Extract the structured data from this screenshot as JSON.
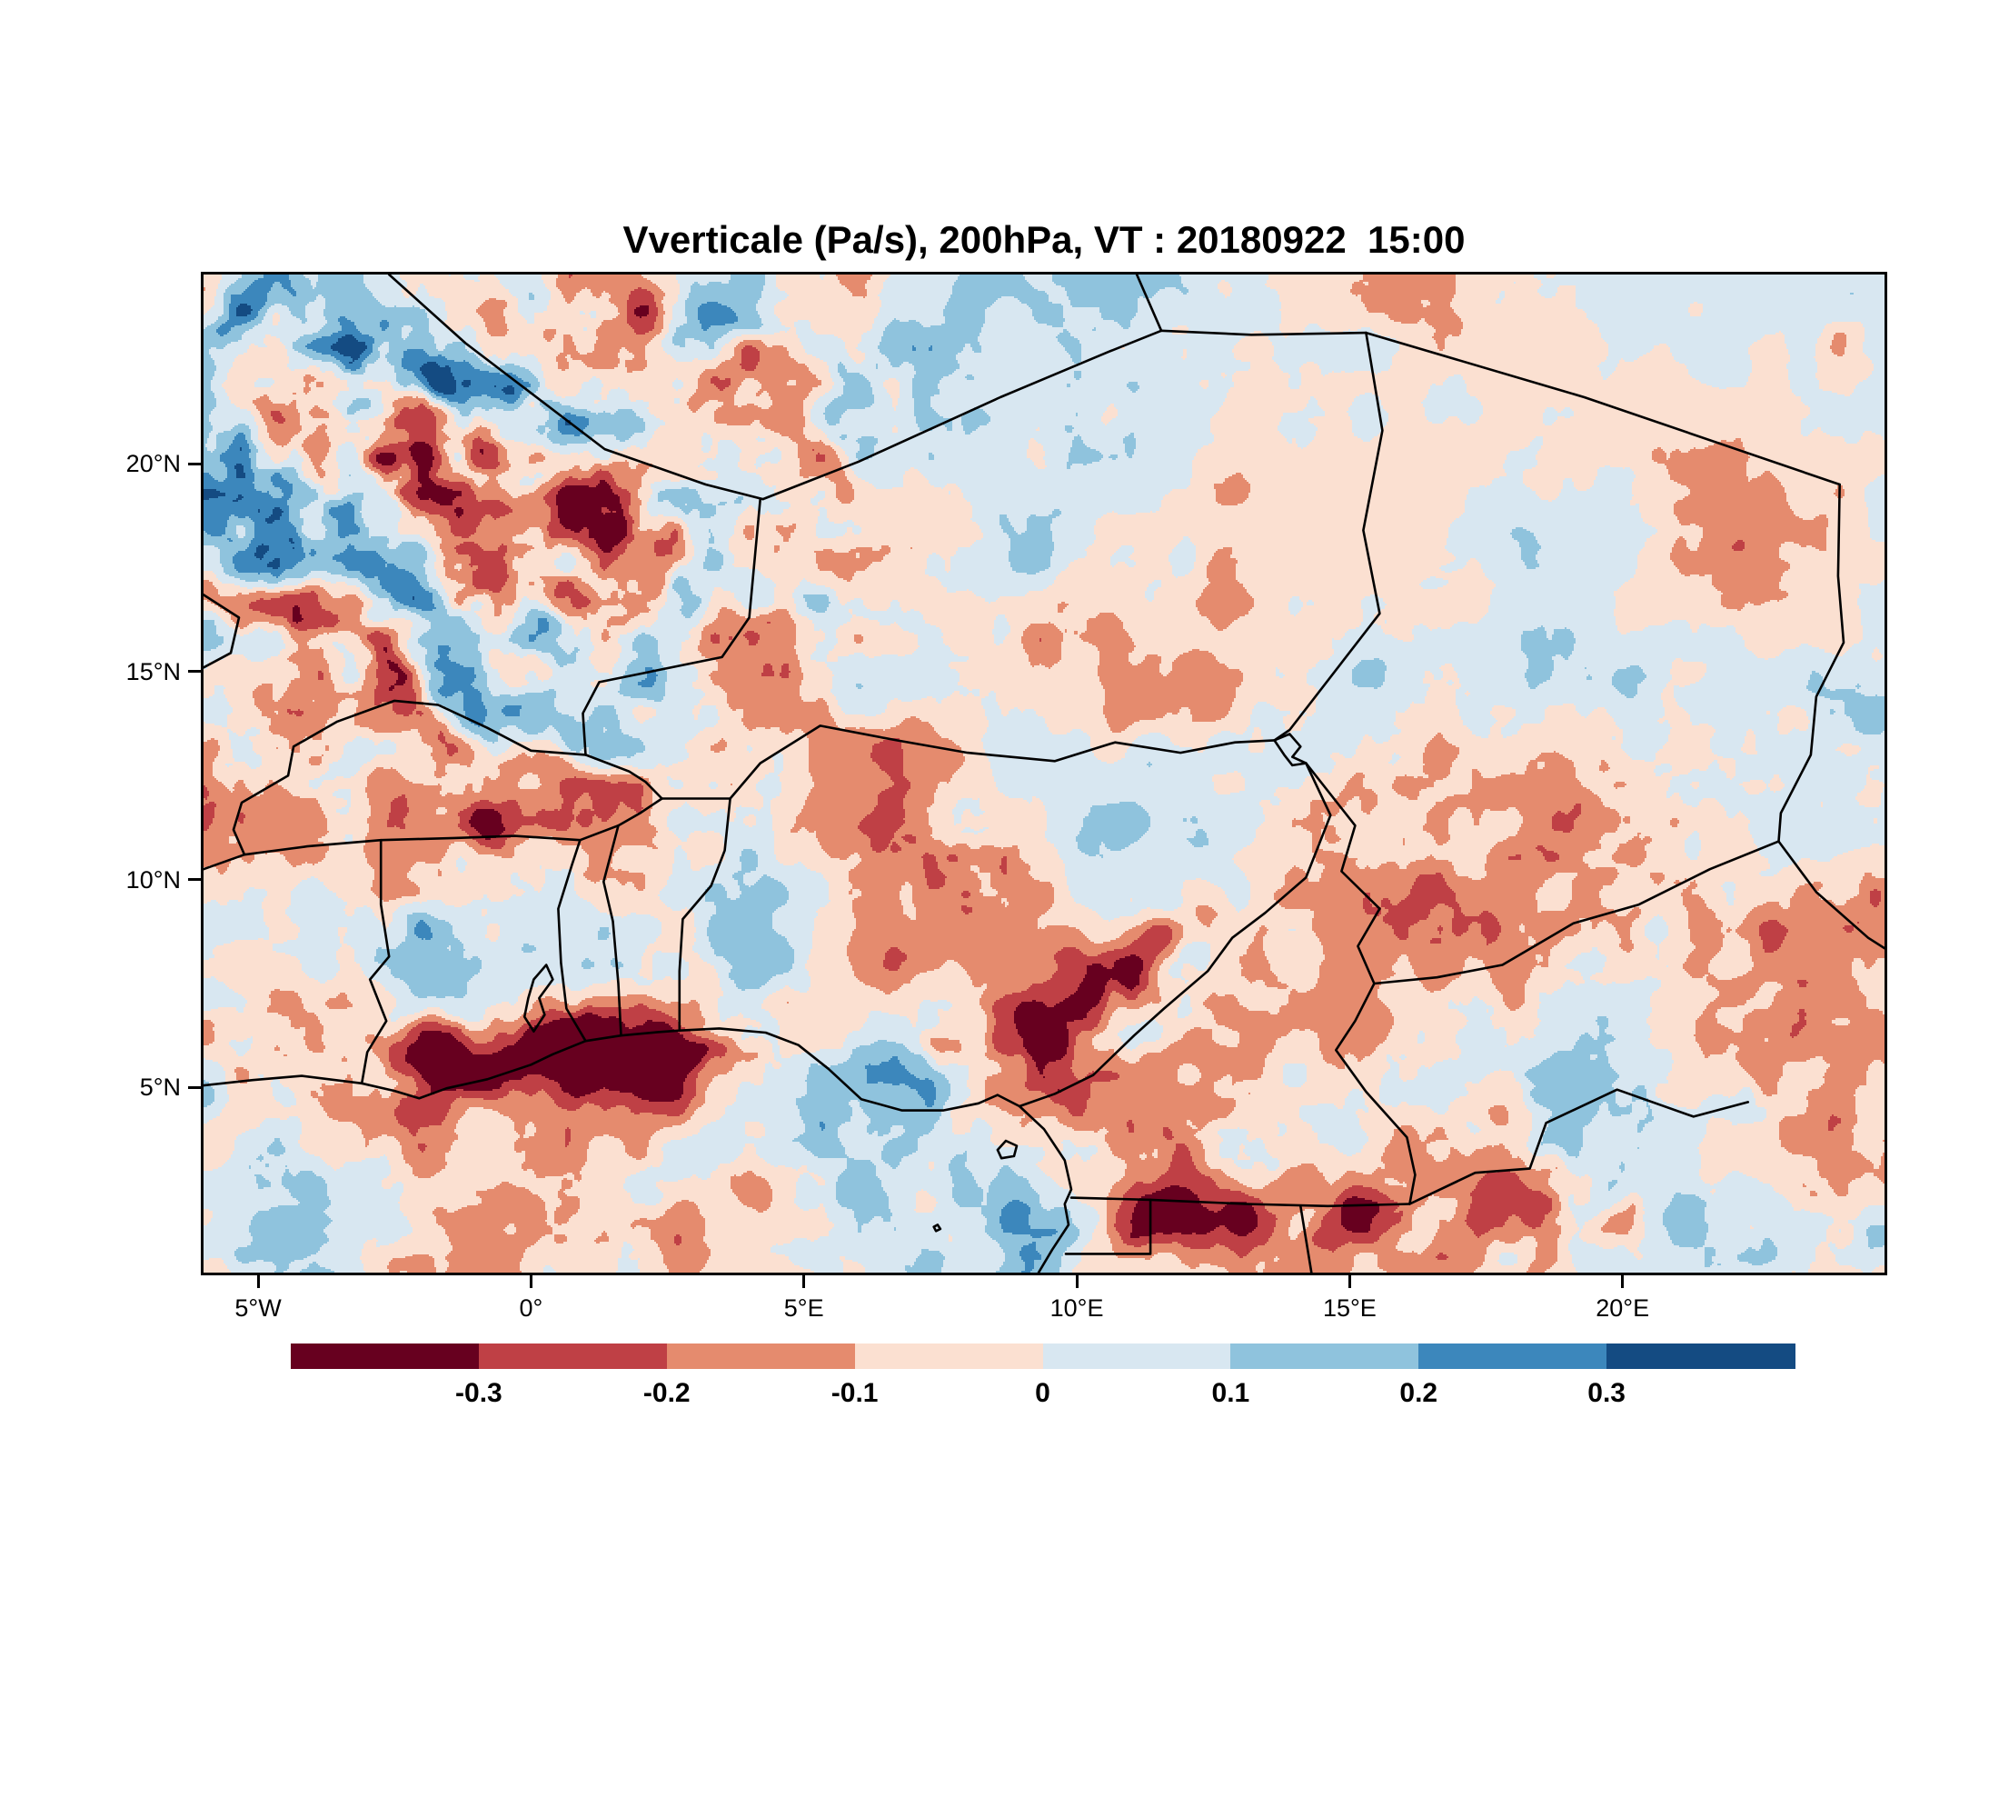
{
  "chart_data": {
    "type": "heatmap",
    "subtype": "filled-contour-weather-map",
    "title": "Vverticale (Pa/s), 200hPa, VT : 20180922  15:00",
    "variable": "Vverticale",
    "units": "Pa/s",
    "level": "200hPa",
    "valid_time": "20180922  15:00",
    "lon_range": [
      -6.0,
      24.8
    ],
    "lat_range": [
      0.55,
      24.55
    ],
    "x_ticks": [
      {
        "label": "5°W",
        "lon": -5
      },
      {
        "label": "0°",
        "lon": 0
      },
      {
        "label": "5°E",
        "lon": 5
      },
      {
        "label": "10°E",
        "lon": 10
      },
      {
        "label": "15°E",
        "lon": 15
      },
      {
        "label": "20°E",
        "lon": 20
      }
    ],
    "y_ticks": [
      {
        "label": "20°N",
        "lat": 20
      },
      {
        "label": "15°N",
        "lat": 15
      },
      {
        "label": "10°N",
        "lat": 10
      },
      {
        "label": "5°N",
        "lat": 5
      }
    ],
    "colorbar": {
      "boundary_labels": [
        "-0.3",
        "-0.2",
        "-0.1",
        "0",
        "0.1",
        "0.2",
        "0.3"
      ],
      "boundary_values": [
        -0.3,
        -0.2,
        -0.1,
        0,
        0.1,
        0.2,
        0.3
      ],
      "colors": [
        "#67001f",
        "#bf4045",
        "#e58b6e",
        "#fbe0d1",
        "#d8e7f1",
        "#8fc3dd",
        "#3c87bc",
        "#144b82"
      ],
      "orientation": "horizontal"
    },
    "field_character": "mottled positive/negative vertical velocity anomalies; strong negative (dark red) band along Gulf of Guinea coast near 5-7N, streaky anomalies over Mali/Algeria in northwest, scattered strong cells over Nigeria/Cameroon and southeast near 18-22E",
    "map_borders": [
      {
        "name": "coastline-gulf-of-guinea",
        "pts": [
          [
            -6,
            5.05
          ],
          [
            -5.1,
            5.18
          ],
          [
            -4.2,
            5.28
          ],
          [
            -3.1,
            5.1
          ],
          [
            -2.5,
            4.92
          ],
          [
            -2.05,
            4.74
          ],
          [
            -1.55,
            4.98
          ],
          [
            -0.8,
            5.2
          ],
          [
            0,
            5.55
          ],
          [
            0.4,
            5.8
          ],
          [
            1,
            6.12
          ],
          [
            1.65,
            6.25
          ],
          [
            2.3,
            6.33
          ],
          [
            2.72,
            6.37
          ],
          [
            3.45,
            6.42
          ],
          [
            4.3,
            6.32
          ],
          [
            4.9,
            6.02
          ],
          [
            5.45,
            5.45
          ],
          [
            6.05,
            4.72
          ],
          [
            6.8,
            4.45
          ],
          [
            7.55,
            4.45
          ],
          [
            8.2,
            4.62
          ],
          [
            8.55,
            4.82
          ],
          [
            8.95,
            4.55
          ],
          [
            9.4,
            4.0
          ],
          [
            9.78,
            3.25
          ],
          [
            9.9,
            2.55
          ],
          [
            9.78,
            2.2
          ],
          [
            9.85,
            1.7
          ],
          [
            9.55,
            1.1
          ],
          [
            9.3,
            0.55
          ]
        ]
      },
      {
        "name": "cote-divoire-ghana",
        "pts": [
          [
            -3.1,
            5.1
          ],
          [
            -3.0,
            5.85
          ],
          [
            -2.65,
            6.6
          ],
          [
            -2.95,
            7.6
          ],
          [
            -2.6,
            8.15
          ],
          [
            -2.75,
            9.4
          ],
          [
            -2.75,
            10.95
          ]
        ]
      },
      {
        "name": "ghana-togo",
        "pts": [
          [
            1.0,
            6.12
          ],
          [
            0.65,
            6.9
          ],
          [
            0.55,
            8.0
          ],
          [
            0.5,
            9.3
          ],
          [
            0.75,
            10.35
          ],
          [
            0.9,
            10.95
          ]
        ]
      },
      {
        "name": "togo-benin",
        "pts": [
          [
            1.65,
            6.25
          ],
          [
            1.6,
            7.5
          ],
          [
            1.5,
            9.0
          ],
          [
            1.33,
            9.95
          ],
          [
            1.6,
            11.3
          ]
        ]
      },
      {
        "name": "benin-nigeria",
        "pts": [
          [
            2.72,
            6.37
          ],
          [
            2.72,
            7.8
          ],
          [
            2.78,
            9.05
          ],
          [
            3.3,
            9.85
          ],
          [
            3.55,
            10.7
          ],
          [
            3.65,
            11.95
          ]
        ]
      },
      {
        "name": "burkina-south",
        "pts": [
          [
            -5.25,
            10.6
          ],
          [
            -4.1,
            10.8
          ],
          [
            -2.75,
            10.95
          ],
          [
            -1.4,
            11.0
          ],
          [
            -0.3,
            11.05
          ],
          [
            0.9,
            10.95
          ],
          [
            1.6,
            11.3
          ],
          [
            2.0,
            11.6
          ],
          [
            2.4,
            11.95
          ]
        ]
      },
      {
        "name": "mali-cote-divoire",
        "pts": [
          [
            -6,
            10.25
          ],
          [
            -5.25,
            10.6
          ]
        ]
      },
      {
        "name": "mali-burkina",
        "pts": [
          [
            -5.25,
            10.6
          ],
          [
            -5.45,
            11.2
          ],
          [
            -5.3,
            11.85
          ],
          [
            -4.45,
            12.5
          ],
          [
            -4.35,
            13.2
          ],
          [
            -3.55,
            13.8
          ],
          [
            -2.5,
            14.3
          ],
          [
            -1.7,
            14.2
          ],
          [
            -0.8,
            13.65
          ],
          [
            0.0,
            13.1
          ],
          [
            1.0,
            13.0
          ]
        ]
      },
      {
        "name": "burkina-niger",
        "pts": [
          [
            1.0,
            13.0
          ],
          [
            1.8,
            12.6
          ],
          [
            2.1,
            12.35
          ],
          [
            2.4,
            11.95
          ]
        ]
      },
      {
        "name": "mali-niger",
        "pts": [
          [
            1.0,
            13.0
          ],
          [
            0.95,
            14.0
          ],
          [
            1.25,
            14.75
          ],
          [
            3.5,
            15.35
          ],
          [
            4.0,
            16.3
          ],
          [
            4.2,
            19.15
          ]
        ]
      },
      {
        "name": "algeria-mali",
        "pts": [
          [
            -2.6,
            24.55
          ],
          [
            -1.2,
            22.9
          ],
          [
            1.35,
            20.35
          ],
          [
            3.2,
            19.5
          ],
          [
            4.25,
            19.15
          ]
        ]
      },
      {
        "name": "algeria-niger",
        "pts": [
          [
            4.25,
            19.15
          ],
          [
            6.0,
            20.05
          ],
          [
            8.6,
            21.6
          ],
          [
            10.6,
            22.7
          ],
          [
            11.55,
            23.2
          ]
        ]
      },
      {
        "name": "algeria-libya",
        "pts": [
          [
            11.55,
            23.2
          ],
          [
            11.1,
            24.55
          ]
        ]
      },
      {
        "name": "libya-niger",
        "pts": [
          [
            11.55,
            23.2
          ],
          [
            13.2,
            23.1
          ],
          [
            15.3,
            23.15
          ]
        ]
      },
      {
        "name": "libya-chad",
        "pts": [
          [
            15.3,
            23.15
          ],
          [
            19.3,
            21.6
          ],
          [
            23.98,
            19.5
          ]
        ]
      },
      {
        "name": "chad-sudan",
        "pts": [
          [
            23.98,
            19.5
          ],
          [
            23.95,
            17.3
          ],
          [
            24.05,
            15.7
          ],
          [
            23.55,
            14.4
          ],
          [
            23.45,
            13.0
          ],
          [
            22.9,
            11.6
          ],
          [
            22.86,
            10.92
          ]
        ]
      },
      {
        "name": "sudan-car",
        "pts": [
          [
            22.86,
            10.92
          ],
          [
            23.55,
            9.7
          ],
          [
            24.5,
            8.6
          ],
          [
            24.8,
            8.35
          ]
        ]
      },
      {
        "name": "chad-car",
        "pts": [
          [
            22.86,
            10.92
          ],
          [
            21.6,
            10.25
          ],
          [
            20.3,
            9.4
          ],
          [
            19.1,
            8.95
          ],
          [
            17.8,
            7.95
          ],
          [
            16.6,
            7.65
          ],
          [
            15.45,
            7.5
          ]
        ]
      },
      {
        "name": "niger-chad",
        "pts": [
          [
            15.3,
            23.15
          ],
          [
            15.6,
            20.8
          ],
          [
            15.25,
            18.4
          ],
          [
            15.55,
            16.4
          ],
          [
            13.9,
            13.6
          ],
          [
            13.62,
            13.35
          ]
        ]
      },
      {
        "name": "niger-nigeria",
        "pts": [
          [
            2.4,
            11.95
          ],
          [
            3.65,
            11.95
          ],
          [
            4.2,
            12.8
          ],
          [
            5.3,
            13.7
          ],
          [
            6.7,
            13.35
          ],
          [
            8.0,
            13.05
          ],
          [
            9.6,
            12.85
          ],
          [
            10.7,
            13.3
          ],
          [
            11.9,
            13.05
          ],
          [
            12.9,
            13.3
          ],
          [
            13.62,
            13.35
          ]
        ]
      },
      {
        "name": "lake-chad",
        "pts": [
          [
            13.62,
            13.35
          ],
          [
            13.9,
            13.5
          ],
          [
            14.1,
            13.2
          ],
          [
            13.95,
            12.95
          ],
          [
            14.2,
            12.8
          ],
          [
            13.95,
            12.75
          ],
          [
            13.8,
            13.0
          ],
          [
            13.62,
            13.35
          ]
        ]
      },
      {
        "name": "nigeria-cameroon",
        "pts": [
          [
            14.2,
            12.8
          ],
          [
            14.65,
            11.55
          ],
          [
            14.2,
            10.05
          ],
          [
            13.45,
            9.2
          ],
          [
            12.85,
            8.6
          ],
          [
            12.4,
            7.8
          ],
          [
            11.6,
            6.9
          ],
          [
            11.05,
            6.25
          ],
          [
            10.3,
            5.3
          ],
          [
            9.6,
            4.85
          ],
          [
            8.95,
            4.55
          ]
        ]
      },
      {
        "name": "chad-cameroon",
        "pts": [
          [
            14.2,
            12.8
          ],
          [
            15.1,
            11.3
          ],
          [
            14.85,
            10.2
          ],
          [
            15.55,
            9.3
          ],
          [
            15.15,
            8.4
          ],
          [
            15.45,
            7.5
          ]
        ]
      },
      {
        "name": "cameroon-car",
        "pts": [
          [
            15.45,
            7.5
          ],
          [
            15.1,
            6.6
          ],
          [
            14.75,
            5.9
          ],
          [
            15.3,
            4.9
          ],
          [
            16.05,
            3.8
          ],
          [
            16.2,
            2.9
          ],
          [
            16.1,
            2.2
          ]
        ]
      },
      {
        "name": "cameroon-south",
        "pts": [
          [
            16.1,
            2.2
          ],
          [
            14.6,
            2.15
          ],
          [
            13.1,
            2.2
          ],
          [
            11.35,
            2.3
          ],
          [
            9.9,
            2.35
          ]
        ]
      },
      {
        "name": "equatorial-guinea",
        "pts": [
          [
            11.35,
            2.3
          ],
          [
            11.35,
            1.0
          ],
          [
            9.8,
            1.0
          ]
        ]
      },
      {
        "name": "gabon-congo",
        "pts": [
          [
            14.1,
            2.15
          ],
          [
            14.3,
            0.55
          ]
        ]
      },
      {
        "name": "car-drc",
        "pts": [
          [
            16.1,
            2.2
          ],
          [
            17.3,
            2.95
          ],
          [
            18.3,
            3.05
          ],
          [
            18.6,
            4.15
          ],
          [
            19.9,
            4.95
          ],
          [
            21.3,
            4.3
          ],
          [
            22.3,
            4.65
          ]
        ]
      },
      {
        "name": "mali-mauritania",
        "pts": [
          [
            -6,
            16.85
          ],
          [
            -5.35,
            16.3
          ],
          [
            -5.5,
            15.45
          ],
          [
            -6,
            15.1
          ]
        ]
      },
      {
        "name": "lake-volta",
        "pts": [
          [
            0.05,
            6.35
          ],
          [
            0.25,
            6.75
          ],
          [
            0.15,
            7.15
          ],
          [
            0.4,
            7.6
          ],
          [
            0.28,
            7.95
          ],
          [
            0.05,
            7.6
          ],
          [
            -0.05,
            7.15
          ],
          [
            -0.12,
            6.7
          ],
          [
            0.05,
            6.35
          ]
        ]
      },
      {
        "name": "bioko-island",
        "pts": [
          [
            8.55,
            3.5
          ],
          [
            8.7,
            3.72
          ],
          [
            8.9,
            3.6
          ],
          [
            8.85,
            3.35
          ],
          [
            8.62,
            3.3
          ],
          [
            8.55,
            3.5
          ]
        ]
      },
      {
        "name": "principe-island",
        "pts": [
          [
            7.38,
            1.65
          ],
          [
            7.45,
            1.7
          ],
          [
            7.5,
            1.6
          ],
          [
            7.42,
            1.55
          ],
          [
            7.38,
            1.65
          ]
        ]
      }
    ]
  }
}
